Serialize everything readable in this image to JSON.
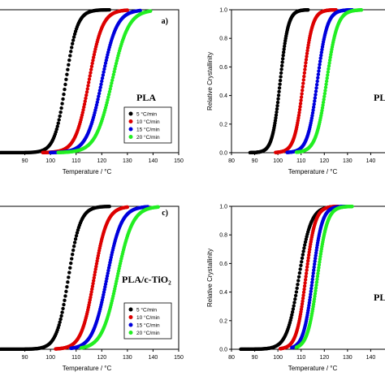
{
  "colors": {
    "5": "#000000",
    "10": "#dd0000",
    "15": "#0000dd",
    "20": "#22ee22"
  },
  "chart_data": [
    {
      "type": "scatter",
      "panel": "a)",
      "title": "PLA",
      "xlabel": "Temperature / °C",
      "ylabel": "",
      "xlim": [
        80,
        150
      ],
      "xticks": [
        "90",
        "100",
        "110",
        "120",
        "130",
        "140",
        "150"
      ],
      "ylim": [
        0,
        1.0
      ],
      "yticks": [],
      "legend": [
        "5 °C/min",
        "10 °C/min",
        "15 °C/min",
        "20 °C/min"
      ],
      "legend_position": "right",
      "series": [
        {
          "name": "5 °C/min",
          "color_key": "5",
          "x_start": 80,
          "x_end": 123,
          "midpoint": 106,
          "width": 2.2
        },
        {
          "name": "10 °C/min",
          "color_key": "10",
          "x_start": 97,
          "x_end": 130,
          "midpoint": 115,
          "width": 2.6
        },
        {
          "name": "15 °C/min",
          "color_key": "15",
          "x_start": 100,
          "x_end": 135,
          "midpoint": 120,
          "width": 2.9
        },
        {
          "name": "20 °C/min",
          "color_key": "20",
          "x_start": 103,
          "x_end": 139,
          "midpoint": 124,
          "width": 3.2
        }
      ]
    },
    {
      "type": "scatter",
      "panel": "",
      "title": "PL",
      "xlabel": "Temperature / °C",
      "ylabel": "Relative Crystallinity",
      "xlim": [
        80,
        150
      ],
      "xticks": [
        "80",
        "90",
        "100",
        "110",
        "120",
        "130",
        "140"
      ],
      "ylim": [
        0,
        1.0
      ],
      "yticks": [
        "0.0",
        "0.2",
        "0.4",
        "0.6",
        "0.8",
        "1.0"
      ],
      "legend": [],
      "legend_position": "right",
      "series": [
        {
          "name": "5 °C/min",
          "color_key": "5",
          "x_start": 88,
          "x_end": 113,
          "midpoint": 101,
          "width": 1.7
        },
        {
          "name": "10 °C/min",
          "color_key": "10",
          "x_start": 99,
          "x_end": 125,
          "midpoint": 111,
          "width": 1.9
        },
        {
          "name": "15 °C/min",
          "color_key": "15",
          "x_start": 104,
          "x_end": 132,
          "midpoint": 117,
          "width": 2.1
        },
        {
          "name": "20 °C/min",
          "color_key": "20",
          "x_start": 108,
          "x_end": 136,
          "midpoint": 121,
          "width": 2.3
        }
      ]
    },
    {
      "type": "scatter",
      "panel": "c)",
      "title": "PLA/c-TiO₂",
      "xlabel": "Temperature / °C",
      "ylabel": "",
      "xlim": [
        80,
        150
      ],
      "xticks": [
        "90",
        "100",
        "110",
        "120",
        "130",
        "140",
        "150"
      ],
      "ylim": [
        0,
        1.0
      ],
      "yticks": [],
      "legend": [
        "5 °C/min",
        "10 °C/min",
        "15 °C/min",
        "20 °C/min"
      ],
      "legend_position": "right",
      "series": [
        {
          "name": "5 °C/min",
          "color_key": "5",
          "x_start": 80,
          "x_end": 123,
          "midpoint": 107,
          "width": 2.3
        },
        {
          "name": "10 °C/min",
          "color_key": "10",
          "x_start": 102,
          "x_end": 130,
          "midpoint": 117,
          "width": 2.5
        },
        {
          "name": "15 °C/min",
          "color_key": "15",
          "x_start": 108,
          "x_end": 138,
          "midpoint": 122,
          "width": 2.8
        },
        {
          "name": "20 °C/min",
          "color_key": "20",
          "x_start": 112,
          "x_end": 142,
          "midpoint": 126,
          "width": 3.0
        }
      ]
    },
    {
      "type": "scatter",
      "panel": "",
      "title": "PL",
      "xlabel": "Temperature / °C",
      "ylabel": "Relative Crystallinity",
      "xlim": [
        80,
        150
      ],
      "xticks": [
        "80",
        "90",
        "100",
        "110",
        "120",
        "130",
        "140"
      ],
      "ylim": [
        0,
        1.0
      ],
      "yticks": [
        "0.0",
        "0.2",
        "0.4",
        "0.6",
        "0.8",
        "1.0"
      ],
      "legend": [],
      "legend_position": "right",
      "series": [
        {
          "name": "5 °C/min",
          "color_key": "5",
          "x_start": 84,
          "x_end": 123,
          "midpoint": 109,
          "width": 2.6
        },
        {
          "name": "10 °C/min",
          "color_key": "10",
          "x_start": 101,
          "x_end": 126,
          "midpoint": 112,
          "width": 2.0
        },
        {
          "name": "15 °C/min",
          "color_key": "15",
          "x_start": 106,
          "x_end": 130,
          "midpoint": 115,
          "width": 2.0
        },
        {
          "name": "20 °C/min",
          "color_key": "20",
          "x_start": 108,
          "x_end": 132,
          "midpoint": 117,
          "width": 2.1
        }
      ]
    }
  ]
}
